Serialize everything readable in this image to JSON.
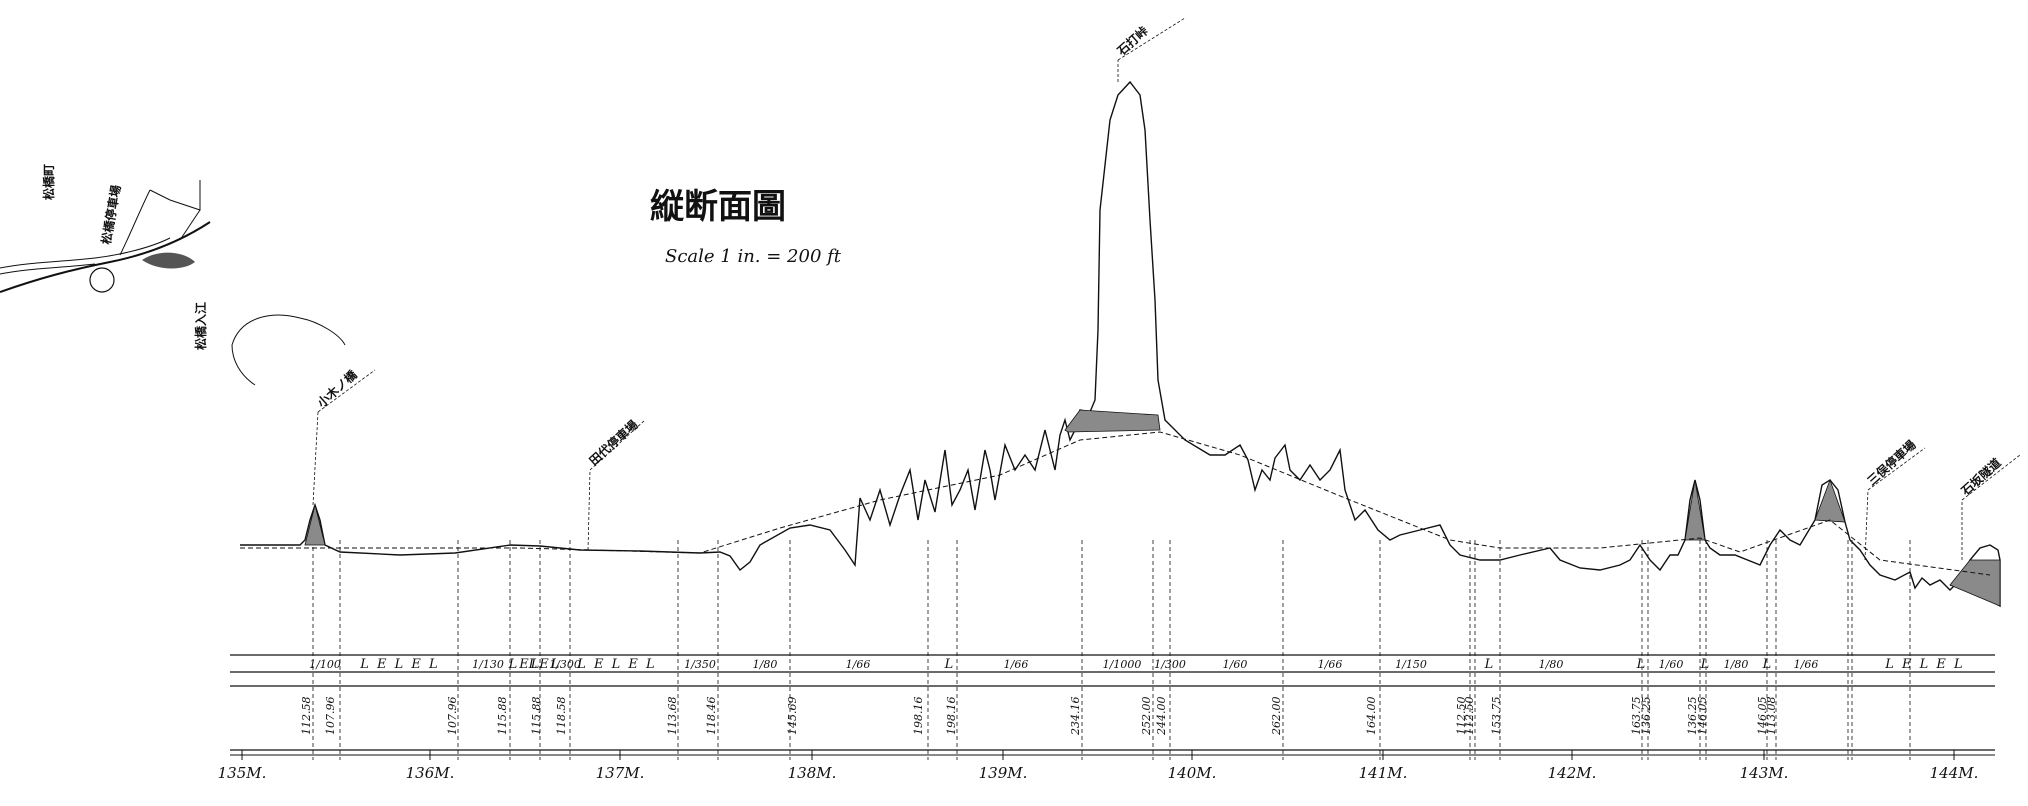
{
  "title": "縦断面圖",
  "scale": "Scale 1 in. = 200 ft",
  "km_marks": [
    "135M.",
    "136M.",
    "137M.",
    "138M.",
    "139M.",
    "140M.",
    "141M.",
    "142M.",
    "143M.",
    "144M."
  ],
  "gradients": [
    "1/100",
    "L E L E L",
    "1/130",
    "LEL",
    "LEL",
    "1/300",
    "L E L E L",
    "1/350",
    "1/80",
    "1/66",
    "L",
    "1/66",
    "1/1000",
    "1/300",
    "1/60",
    "1/66",
    "1/150",
    "L",
    "1/80",
    "L",
    "1/60",
    "L",
    "1/80",
    "L",
    "1/66",
    "L E L E L"
  ],
  "elevations": [
    "112.58",
    "107.96",
    "107.96",
    "115.88",
    "115.88",
    "118.58",
    "113.68",
    "118.46",
    "145.69",
    "198.16",
    "198.16",
    "234.16",
    "252.00",
    "244.00",
    "262.00",
    "164.00",
    "112.50",
    "112.50",
    "153.75",
    "163.75",
    "136.25",
    "136.25",
    "146.05",
    "146.05",
    "113.08"
  ],
  "stations": [
    "小木ノ橋",
    "田代停車場",
    "石打峠",
    "三俣停車場",
    "石坂隧道"
  ],
  "inset_labels": [
    "松橋町",
    "松橋停車場",
    "松橋入江"
  ]
}
